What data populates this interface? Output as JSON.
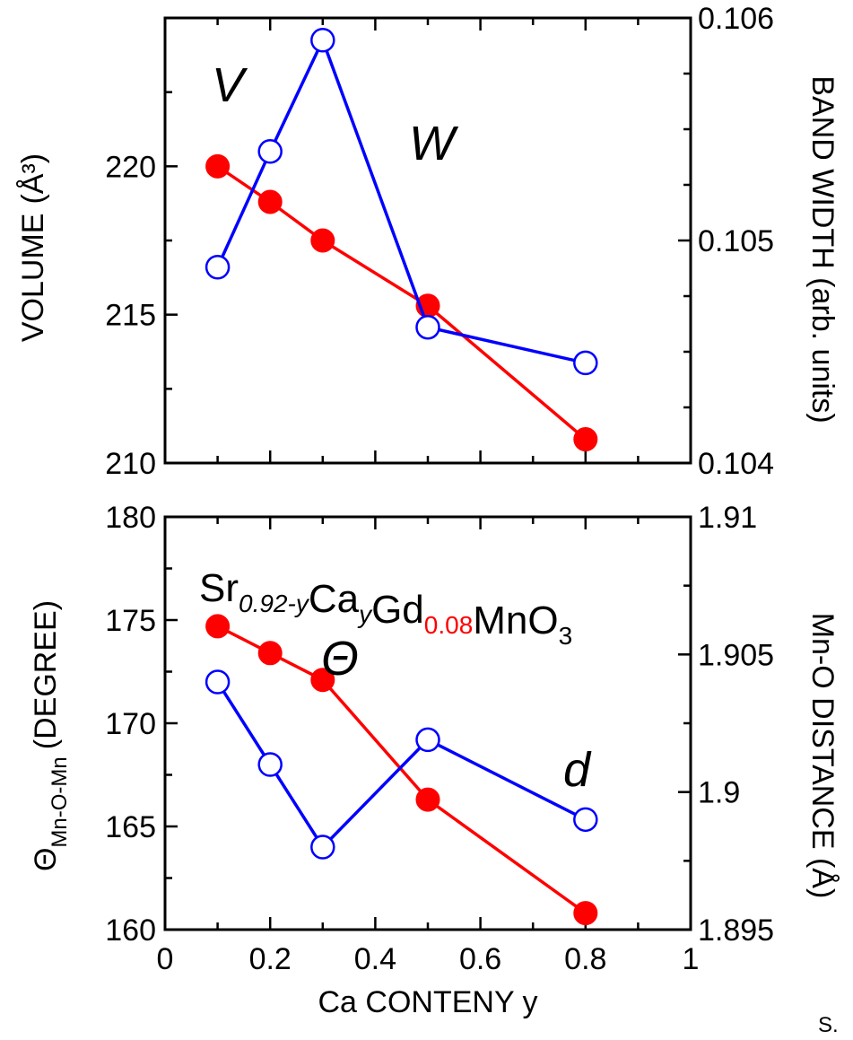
{
  "chart_data": [
    {
      "type": "line",
      "panel": "top",
      "x": [
        0.1,
        0.2,
        0.3,
        0.5,
        0.8
      ],
      "xlim": [
        0,
        1
      ],
      "x_ticks": [
        "0",
        "0.2",
        "0.4",
        "0.6",
        "0.8",
        "1"
      ],
      "ylabel": "VOLUME",
      "ylabel_unit": "(Å³)",
      "ylim": [
        210,
        225
      ],
      "y_ticks": [
        "210",
        "215",
        "220"
      ],
      "y2label": "BAND WIDTH (arb. units)",
      "y2lim": [
        0.104,
        0.106
      ],
      "y2_ticks": [
        "0.104",
        "0.105",
        "0.106"
      ],
      "series": [
        {
          "name": "V",
          "axis": "left",
          "marker": "filled-circle",
          "color": "#ff0000",
          "values": [
            220.0,
            218.8,
            217.5,
            215.3,
            210.8
          ]
        },
        {
          "name": "W",
          "axis": "right",
          "marker": "open-circle",
          "color": "#0000ff",
          "values": [
            0.10488,
            0.1054,
            0.1059,
            0.10461,
            0.10445
          ]
        }
      ]
    },
    {
      "type": "line",
      "panel": "bottom",
      "x": [
        0.1,
        0.2,
        0.3,
        0.5,
        0.8
      ],
      "xlim": [
        0,
        1
      ],
      "xlabel": "Ca CONTENY y",
      "x_ticks": [
        "0",
        "0.2",
        "0.4",
        "0.6",
        "0.8",
        "1"
      ],
      "ylabel_symbol": "Θ",
      "ylabel_sub": "Mn-O-Mn",
      "ylabel_rest": "(DEGREE)",
      "ylim": [
        160,
        180
      ],
      "y_ticks": [
        "160",
        "165",
        "170",
        "175",
        "180"
      ],
      "y2label": "Mn-O DISTANCE (Å)",
      "y2lim": [
        1.895,
        1.91
      ],
      "y2_ticks": [
        "1.895",
        "1.9",
        "1.905",
        "1.91"
      ],
      "annotation": {
        "parts": [
          {
            "text": "Sr",
            "sub": "0.92-y",
            "sub_italic": true
          },
          {
            "text": "Ca",
            "sub": "y",
            "sub_italic": true
          },
          {
            "text": "Gd",
            "sub": "0.08",
            "sub_color": "#ff0000"
          },
          {
            "text": "MnO",
            "sub": "3"
          }
        ]
      },
      "series": [
        {
          "name": "Θ",
          "axis": "left",
          "marker": "filled-circle",
          "color": "#ff0000",
          "values": [
            174.7,
            173.4,
            172.1,
            166.3,
            160.8
          ]
        },
        {
          "name": "d",
          "axis": "right",
          "marker": "open-circle",
          "color": "#0000ff",
          "values": [
            1.904,
            1.901,
            1.898,
            1.9019,
            1.899
          ]
        }
      ]
    }
  ],
  "corner_text": "S."
}
